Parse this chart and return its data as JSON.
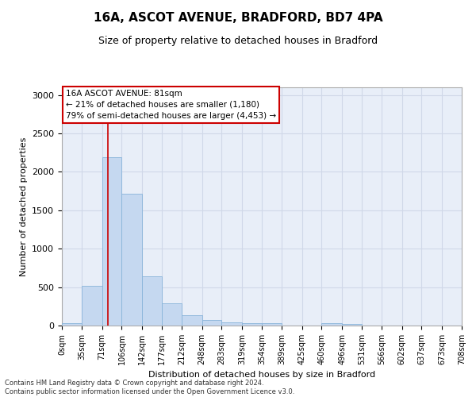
{
  "title": "16A, ASCOT AVENUE, BRADFORD, BD7 4PA",
  "subtitle": "Size of property relative to detached houses in Bradford",
  "xlabel": "Distribution of detached houses by size in Bradford",
  "ylabel": "Number of detached properties",
  "bar_values": [
    35,
    520,
    2190,
    1720,
    640,
    290,
    130,
    75,
    45,
    35,
    35,
    0,
    0,
    30,
    25,
    0,
    0,
    0,
    0,
    0
  ],
  "bin_edges": [
    0,
    35,
    71,
    106,
    142,
    177,
    212,
    248,
    283,
    319,
    354,
    389,
    425,
    460,
    496,
    531,
    566,
    602,
    637,
    673,
    708
  ],
  "tick_labels": [
    "0sqm",
    "35sqm",
    "71sqm",
    "106sqm",
    "142sqm",
    "177sqm",
    "212sqm",
    "248sqm",
    "283sqm",
    "319sqm",
    "354sqm",
    "389sqm",
    "425sqm",
    "460sqm",
    "496sqm",
    "531sqm",
    "566sqm",
    "602sqm",
    "637sqm",
    "673sqm",
    "708sqm"
  ],
  "bar_color": "#c5d8f0",
  "bar_edge_color": "#89b4d9",
  "red_line_x": 81,
  "ylim": [
    0,
    3100
  ],
  "yticks": [
    0,
    500,
    1000,
    1500,
    2000,
    2500,
    3000
  ],
  "annotation_text": "16A ASCOT AVENUE: 81sqm\n← 21% of detached houses are smaller (1,180)\n79% of semi-detached houses are larger (4,453) →",
  "annotation_box_color": "#ffffff",
  "annotation_border_color": "#cc0000",
  "grid_color": "#d0d8e8",
  "background_color": "#e8eef8",
  "footer_text": "Contains HM Land Registry data © Crown copyright and database right 2024.\nContains public sector information licensed under the Open Government Licence v3.0.",
  "title_fontsize": 11,
  "subtitle_fontsize": 9,
  "annotation_fontsize": 7.5,
  "axis_label_fontsize": 8,
  "tick_fontsize": 7,
  "footer_fontsize": 6
}
